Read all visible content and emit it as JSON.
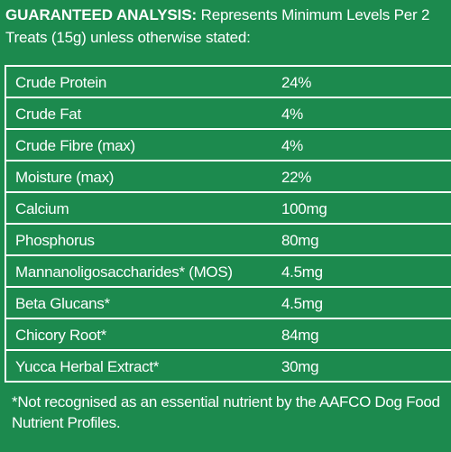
{
  "header": {
    "title": "GUARANTEED ANALYSIS:",
    "subtitle": " Represents Minimum Levels Per 2 Treats (15g) unless otherwise stated:"
  },
  "analysis": {
    "rows": [
      {
        "name": "Crude Protein",
        "value": "24%"
      },
      {
        "name": "Crude Fat",
        "value": "4%"
      },
      {
        "name": "Crude Fibre (max)",
        "value": "4%"
      },
      {
        "name": "Moisture (max)",
        "value": "22%"
      },
      {
        "name": "Calcium",
        "value": "100mg"
      },
      {
        "name": "Phosphorus",
        "value": "80mg"
      },
      {
        "name": "Mannanoligosaccharides* (MOS)",
        "value": "4.5mg"
      },
      {
        "name": "Beta Glucans*",
        "value": "4.5mg"
      },
      {
        "name": "Chicory Root*",
        "value": "84mg"
      },
      {
        "name": "Yucca Herbal Extract*",
        "value": "30mg"
      }
    ]
  },
  "footnote": "*Not recognised as an essential nutrient by the AAFCO Dog Food Nutrient Profiles.",
  "colors": {
    "background": "#1c8a4e",
    "text": "#ffffff"
  }
}
